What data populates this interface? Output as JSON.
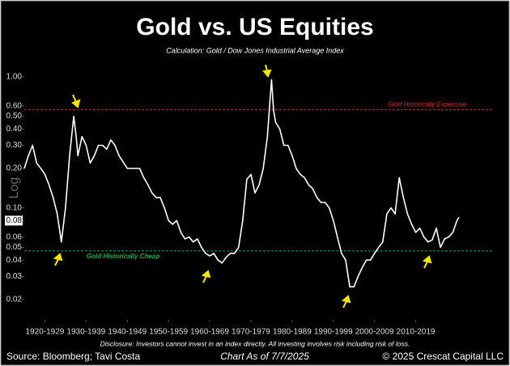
{
  "chart_data": {
    "type": "line",
    "title": "Gold vs. US Equities",
    "subtitle": "Calculation: Gold / Dow Jones Industrial Average Index",
    "y_label": "Log",
    "log_scale": true,
    "grid": false,
    "color": "#ffffff",
    "x": [
      1920,
      1921,
      1922,
      1923,
      1924,
      1925,
      1926,
      1927,
      1928,
      1929,
      1930,
      1931,
      1932,
      1932.6,
      1933,
      1934,
      1935,
      1936,
      1937,
      1938,
      1939,
      1940,
      1941,
      1942,
      1943,
      1945,
      1946,
      1947,
      1948,
      1949,
      1950,
      1951,
      1952,
      1953,
      1954,
      1955,
      1956,
      1957,
      1958,
      1959,
      1960,
      1961,
      1962,
      1963,
      1964,
      1965,
      1966,
      1967,
      1968,
      1969,
      1970,
      1971,
      1972,
      1973,
      1974,
      1975,
      1976,
      1977,
      1978,
      1979,
      1980,
      1980.5,
      1981,
      1982,
      1983,
      1984,
      1985,
      1986,
      1987,
      1988,
      1989,
      1990,
      1991,
      1992,
      1993,
      1994,
      1995,
      1996,
      1997,
      1998,
      1999,
      2000,
      2001,
      2002,
      2003,
      2004,
      2005,
      2006,
      2007,
      2008,
      2009,
      2010,
      2011,
      2012,
      2013,
      2014,
      2015,
      2016,
      2017,
      2018,
      2019,
      2020,
      2021,
      2022,
      2023,
      2024,
      2025,
      2025.5
    ],
    "values": [
      0.2,
      0.25,
      0.3,
      0.22,
      0.2,
      0.18,
      0.15,
      0.12,
      0.09,
      0.055,
      0.1,
      0.25,
      0.5,
      0.35,
      0.25,
      0.35,
      0.3,
      0.22,
      0.25,
      0.3,
      0.3,
      0.28,
      0.33,
      0.3,
      0.25,
      0.2,
      0.2,
      0.2,
      0.2,
      0.17,
      0.15,
      0.13,
      0.12,
      0.12,
      0.1,
      0.08,
      0.075,
      0.08,
      0.065,
      0.058,
      0.06,
      0.055,
      0.058,
      0.05,
      0.045,
      0.043,
      0.045,
      0.04,
      0.038,
      0.042,
      0.045,
      0.045,
      0.05,
      0.08,
      0.165,
      0.18,
      0.13,
      0.15,
      0.2,
      0.35,
      0.95,
      0.55,
      0.45,
      0.4,
      0.3,
      0.3,
      0.25,
      0.2,
      0.18,
      0.17,
      0.15,
      0.14,
      0.12,
      0.11,
      0.11,
      0.1,
      0.08,
      0.06,
      0.045,
      0.04,
      0.025,
      0.025,
      0.03,
      0.035,
      0.04,
      0.04,
      0.045,
      0.05,
      0.055,
      0.09,
      0.1,
      0.09,
      0.17,
      0.12,
      0.09,
      0.075,
      0.065,
      0.07,
      0.06,
      0.055,
      0.057,
      0.07,
      0.05,
      0.058,
      0.06,
      0.065,
      0.08,
      0.085
    ],
    "xlim": [
      1920,
      2031
    ],
    "xticks": [
      {
        "value": 1925,
        "label": "1920-1929"
      },
      {
        "value": 1935,
        "label": "1930-1939"
      },
      {
        "value": 1945,
        "label": "1940-1949"
      },
      {
        "value": 1955,
        "label": "1950-1959"
      },
      {
        "value": 1965,
        "label": "1960-1969"
      },
      {
        "value": 1975,
        "label": "1970-1979"
      },
      {
        "value": 1985,
        "label": "1980-1989"
      },
      {
        "value": 1995,
        "label": "1990-1999"
      },
      {
        "value": 2005,
        "label": "2000-2009"
      },
      {
        "value": 2015,
        "label": "2010-2019"
      }
    ],
    "ylim": [
      0.014,
      1.15
    ],
    "yticks": [
      {
        "value": 1,
        "label": "1.00"
      },
      {
        "value": 0.6,
        "label": "0.60"
      },
      {
        "value": 0.5,
        "label": "0.50"
      },
      {
        "value": 0.4,
        "label": "0.40"
      },
      {
        "value": 0.3,
        "label": "0.30"
      },
      {
        "value": 0.2,
        "label": "0.20"
      },
      {
        "value": 0.1,
        "label": "0.10"
      },
      0.08,
      0.06,
      0.05,
      0.04,
      0.03,
      0.02
    ],
    "highlight_ytick": 0.08,
    "reference_lines": [
      {
        "value": 0.56,
        "label": "Gold Historically Expensive",
        "color": "#e02424"
      },
      {
        "value": 0.047,
        "label": "Gold Historically Cheap",
        "color": "#1fae3a"
      }
    ],
    "disclosure": "Disclosure: Investors cannot invest in an index directly. All investing involves risk including risk of loss.",
    "source": "Source: Bloomberg; Tavi Costa",
    "as_of": "Chart As of 7/7/2025",
    "copyright": "© 2025 Crescat Capital LLC"
  }
}
